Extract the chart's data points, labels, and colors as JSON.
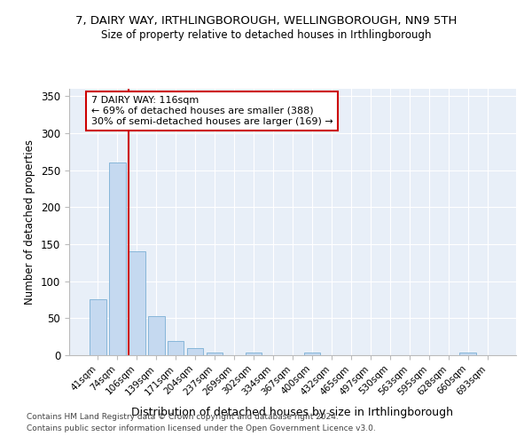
{
  "title": "7, DAIRY WAY, IRTHLINGBOROUGH, WELLINGBOROUGH, NN9 5TH",
  "subtitle": "Size of property relative to detached houses in Irthlingborough",
  "xlabel": "Distribution of detached houses by size in Irthlingborough",
  "ylabel": "Number of detached properties",
  "bar_color": "#c5d9f0",
  "bar_edge_color": "#7aafd4",
  "background_color": "#e8eff8",
  "grid_color": "#ffffff",
  "annotation_line1": "7 DAIRY WAY: 116sqm",
  "annotation_line2": "← 69% of detached houses are smaller (388)",
  "annotation_line3": "30% of semi-detached houses are larger (169) →",
  "annotation_box_color": "#ffffff",
  "annotation_box_edge": "#cc0000",
  "vline_color": "#cc0000",
  "categories": [
    "41sqm",
    "74sqm",
    "106sqm",
    "139sqm",
    "171sqm",
    "204sqm",
    "237sqm",
    "269sqm",
    "302sqm",
    "334sqm",
    "367sqm",
    "400sqm",
    "432sqm",
    "465sqm",
    "497sqm",
    "530sqm",
    "563sqm",
    "595sqm",
    "628sqm",
    "660sqm",
    "693sqm"
  ],
  "values": [
    76,
    261,
    141,
    53,
    19,
    10,
    4,
    0,
    4,
    0,
    0,
    4,
    0,
    0,
    0,
    0,
    0,
    0,
    0,
    4,
    0
  ],
  "ylim": [
    0,
    360
  ],
  "yticks": [
    0,
    50,
    100,
    150,
    200,
    250,
    300,
    350
  ],
  "footer1": "Contains HM Land Registry data © Crown copyright and database right 2024.",
  "footer2": "Contains public sector information licensed under the Open Government Licence v3.0."
}
